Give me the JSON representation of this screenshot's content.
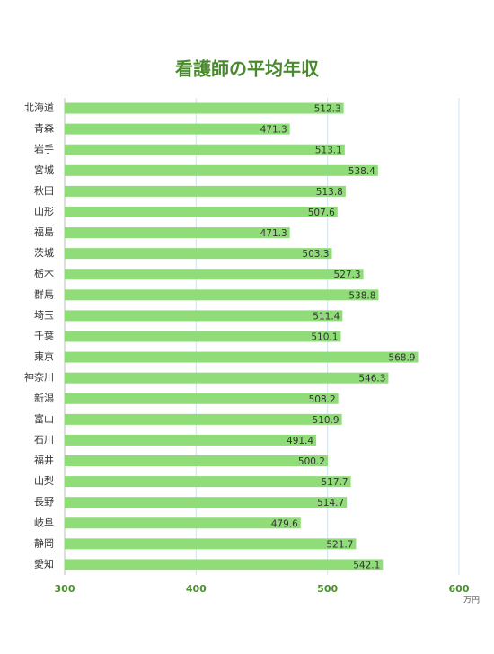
{
  "chart_data": {
    "type": "bar",
    "orientation": "horizontal",
    "title": "看護師の平均年収",
    "x_unit": "万円",
    "categories": [
      "北海道",
      "青森",
      "岩手",
      "宮城",
      "秋田",
      "山形",
      "福島",
      "茨城",
      "栃木",
      "群馬",
      "埼玉",
      "千葉",
      "東京",
      "神奈川",
      "新潟",
      "富山",
      "石川",
      "福井",
      "山梨",
      "長野",
      "岐阜",
      "静岡",
      "愛知"
    ],
    "values": [
      512.3,
      471.3,
      513.1,
      538.4,
      513.8,
      507.6,
      471.3,
      503.3,
      527.3,
      538.8,
      511.4,
      510.1,
      568.9,
      546.3,
      508.2,
      510.9,
      491.4,
      500.2,
      517.7,
      514.7,
      479.6,
      521.7,
      542.1
    ],
    "color": "#8fdc78",
    "xlim": [
      300,
      600
    ],
    "xticks": [
      300,
      400,
      500,
      600
    ],
    "grid": true
  }
}
